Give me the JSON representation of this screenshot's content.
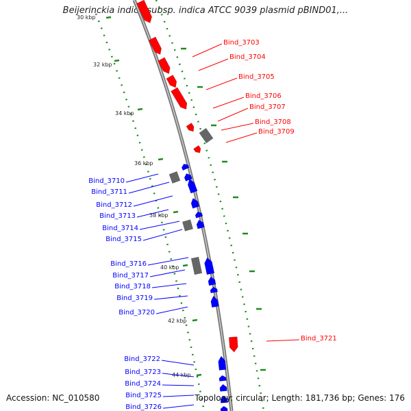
{
  "title": "Beijerinckia indica subsp. indica ATCC 9039 plasmid pBIND01,...",
  "footer": {
    "accession": "Accession: NC_010580",
    "summary": "Topology: circular; Length: 181,736 bp; Genes: 176"
  },
  "colors": {
    "forward": "#ff0000",
    "reverse": "#0000ff",
    "other": "#666666",
    "backbone": "#888888",
    "ticks": "#1f8a1f"
  },
  "kbp_labels": [
    {
      "text": "30 kbp",
      "kb": 30
    },
    {
      "text": "32 kbp",
      "kb": 32
    },
    {
      "text": "34 kbp",
      "kb": 34
    },
    {
      "text": "36 kbp",
      "kb": 36
    },
    {
      "text": "38 kbp",
      "kb": 38
    },
    {
      "text": "40 kbp",
      "kb": 40
    },
    {
      "text": "42 kbp",
      "kb": 42
    },
    {
      "text": "44 kbp",
      "kb": 44
    }
  ],
  "genes_right": [
    {
      "label": "Bind_3703",
      "strand": "forward"
    },
    {
      "label": "Bind_3704",
      "strand": "forward"
    },
    {
      "label": "Bind_3705",
      "strand": "forward"
    },
    {
      "label": "Bind_3706",
      "strand": "forward"
    },
    {
      "label": "Bind_3707",
      "strand": "forward"
    },
    {
      "label": "Bind_3708",
      "strand": "forward"
    },
    {
      "label": "Bind_3709",
      "strand": "forward"
    },
    {
      "label": "Bind_3721",
      "strand": "forward"
    }
  ],
  "genes_left": [
    {
      "label": "Bind_3710",
      "strand": "other"
    },
    {
      "label": "Bind_3711",
      "strand": "reverse"
    },
    {
      "label": "Bind_3712",
      "strand": "reverse"
    },
    {
      "label": "Bind_3713",
      "strand": "reverse"
    },
    {
      "label": "Bind_3714",
      "strand": "other"
    },
    {
      "label": "Bind_3715",
      "strand": "reverse"
    },
    {
      "label": "Bind_3716",
      "strand": "other"
    },
    {
      "label": "Bind_3717",
      "strand": "reverse"
    },
    {
      "label": "Bind_3718",
      "strand": "reverse"
    },
    {
      "label": "Bind_3719",
      "strand": "reverse"
    },
    {
      "label": "Bind_3720",
      "strand": "reverse"
    },
    {
      "label": "Bind_3722",
      "strand": "reverse"
    },
    {
      "label": "Bind_3723",
      "strand": "reverse"
    },
    {
      "label": "Bind_3724",
      "strand": "reverse"
    },
    {
      "label": "Bind_3725",
      "strand": "reverse"
    },
    {
      "label": "Bind_3726",
      "strand": "reverse"
    }
  ]
}
